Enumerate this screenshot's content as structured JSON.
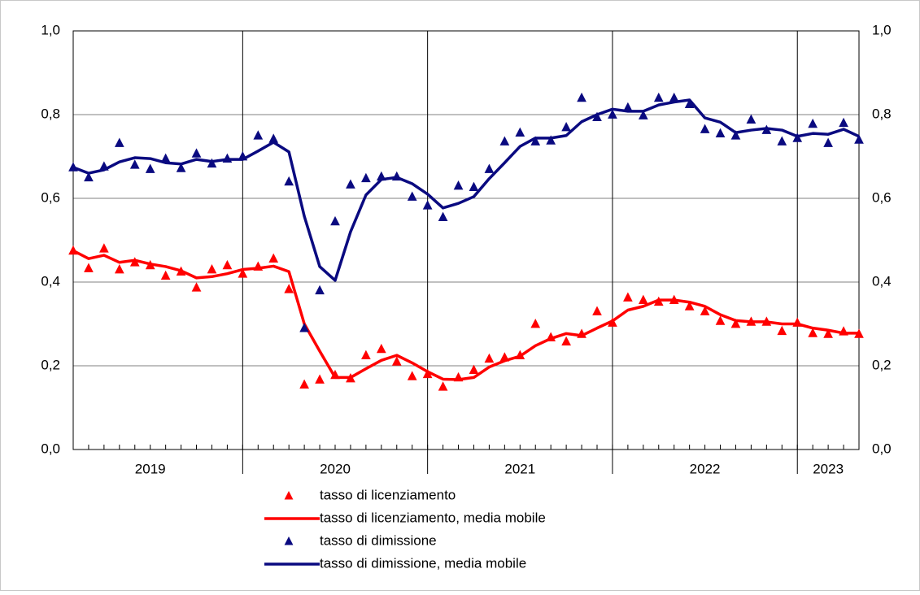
{
  "chart_data": {
    "type": "line",
    "categories": [
      null,
      null,
      null,
      null,
      null,
      "2019",
      null,
      null,
      null,
      null,
      null,
      null,
      null,
      null,
      null,
      null,
      null,
      "2020",
      null,
      null,
      null,
      null,
      null,
      null,
      null,
      null,
      null,
      null,
      null,
      "2021",
      null,
      null,
      null,
      null,
      null,
      null,
      null,
      null,
      null,
      null,
      null,
      "2022",
      null,
      null,
      null,
      null,
      null,
      null,
      null,
      "2023",
      null,
      null
    ],
    "ylim": [
      0,
      1
    ],
    "yticks": [
      {
        "value": 0,
        "label": "0,0"
      },
      {
        "value": 0.2,
        "label": "0,2"
      },
      {
        "value": 0.4,
        "label": "0,4"
      },
      {
        "value": 0.6,
        "label": "0,6"
      },
      {
        "value": 0.8,
        "label": "0,8"
      },
      {
        "value": 1,
        "label": "1,0"
      }
    ],
    "y2lim": [
      0,
      1
    ],
    "y2ticks": [
      {
        "value": 0,
        "label": "0,0"
      },
      {
        "value": 0.2,
        "label": "0,2"
      },
      {
        "value": 0.4,
        "label": "0,4"
      },
      {
        "value": 0.6,
        "label": "0,6"
      },
      {
        "value": 0.8,
        "label": "0,8"
      },
      {
        "value": 1,
        "label": "1,0"
      }
    ],
    "grid": true,
    "legend": "bottom",
    "series": [
      {
        "name": "tasso di licenziamento",
        "color": "#ff0000",
        "mode": "markers",
        "values": [
          0.475,
          0.433,
          0.48,
          0.43,
          0.447,
          0.44,
          0.415,
          0.425,
          0.387,
          0.43,
          0.44,
          0.42,
          0.437,
          0.456,
          0.383,
          0.155,
          0.167,
          0.178,
          0.17,
          0.225,
          0.24,
          0.21,
          0.175,
          0.18,
          0.15,
          0.172,
          0.19,
          0.217,
          0.22,
          0.225,
          0.3,
          0.268,
          0.258,
          0.276,
          0.33,
          0.303,
          0.363,
          0.357,
          0.353,
          0.357,
          0.342,
          0.33,
          0.307,
          0.3,
          0.305,
          0.305,
          0.283,
          0.303,
          0.278,
          0.276,
          0.282,
          0.276
        ]
      },
      {
        "name": "tasso di licenziamento, media mobile",
        "color": "#ff0000",
        "mode": "line",
        "values": [
          0.475,
          0.456,
          0.464,
          0.447,
          0.452,
          0.443,
          0.437,
          0.427,
          0.41,
          0.413,
          0.42,
          0.43,
          0.433,
          0.438,
          0.425,
          0.3,
          0.235,
          0.172,
          0.172,
          0.193,
          0.213,
          0.225,
          0.207,
          0.186,
          0.168,
          0.167,
          0.172,
          0.197,
          0.212,
          0.223,
          0.248,
          0.265,
          0.277,
          0.272,
          0.29,
          0.307,
          0.333,
          0.342,
          0.357,
          0.357,
          0.352,
          0.342,
          0.322,
          0.308,
          0.305,
          0.305,
          0.3,
          0.3,
          0.29,
          0.285,
          0.278,
          0.278
        ]
      },
      {
        "name": "tasso di dimissione",
        "color": "#0a0a80",
        "mode": "markers",
        "values": [
          0.674,
          0.65,
          0.676,
          0.732,
          0.68,
          0.67,
          0.695,
          0.672,
          0.707,
          0.683,
          0.695,
          0.7,
          0.75,
          0.742,
          0.64,
          0.29,
          0.38,
          0.545,
          0.633,
          0.648,
          0.652,
          0.652,
          0.604,
          0.583,
          0.555,
          0.63,
          0.627,
          0.67,
          0.736,
          0.757,
          0.736,
          0.738,
          0.77,
          0.84,
          0.794,
          0.8,
          0.817,
          0.798,
          0.84,
          0.84,
          0.825,
          0.765,
          0.755,
          0.75,
          0.788,
          0.763,
          0.736,
          0.744,
          0.778,
          0.732,
          0.78,
          0.74
        ]
      },
      {
        "name": "tasso di dimissione, media mobile",
        "color": "#0a0a80",
        "mode": "line",
        "values": [
          0.674,
          0.66,
          0.668,
          0.687,
          0.697,
          0.695,
          0.685,
          0.682,
          0.693,
          0.688,
          0.693,
          0.693,
          0.713,
          0.734,
          0.711,
          0.557,
          0.437,
          0.404,
          0.52,
          0.608,
          0.645,
          0.65,
          0.635,
          0.61,
          0.577,
          0.588,
          0.604,
          0.647,
          0.685,
          0.724,
          0.744,
          0.744,
          0.75,
          0.783,
          0.8,
          0.813,
          0.808,
          0.808,
          0.823,
          0.83,
          0.835,
          0.792,
          0.782,
          0.757,
          0.763,
          0.767,
          0.763,
          0.748,
          0.755,
          0.753,
          0.765,
          0.748
        ]
      }
    ]
  }
}
